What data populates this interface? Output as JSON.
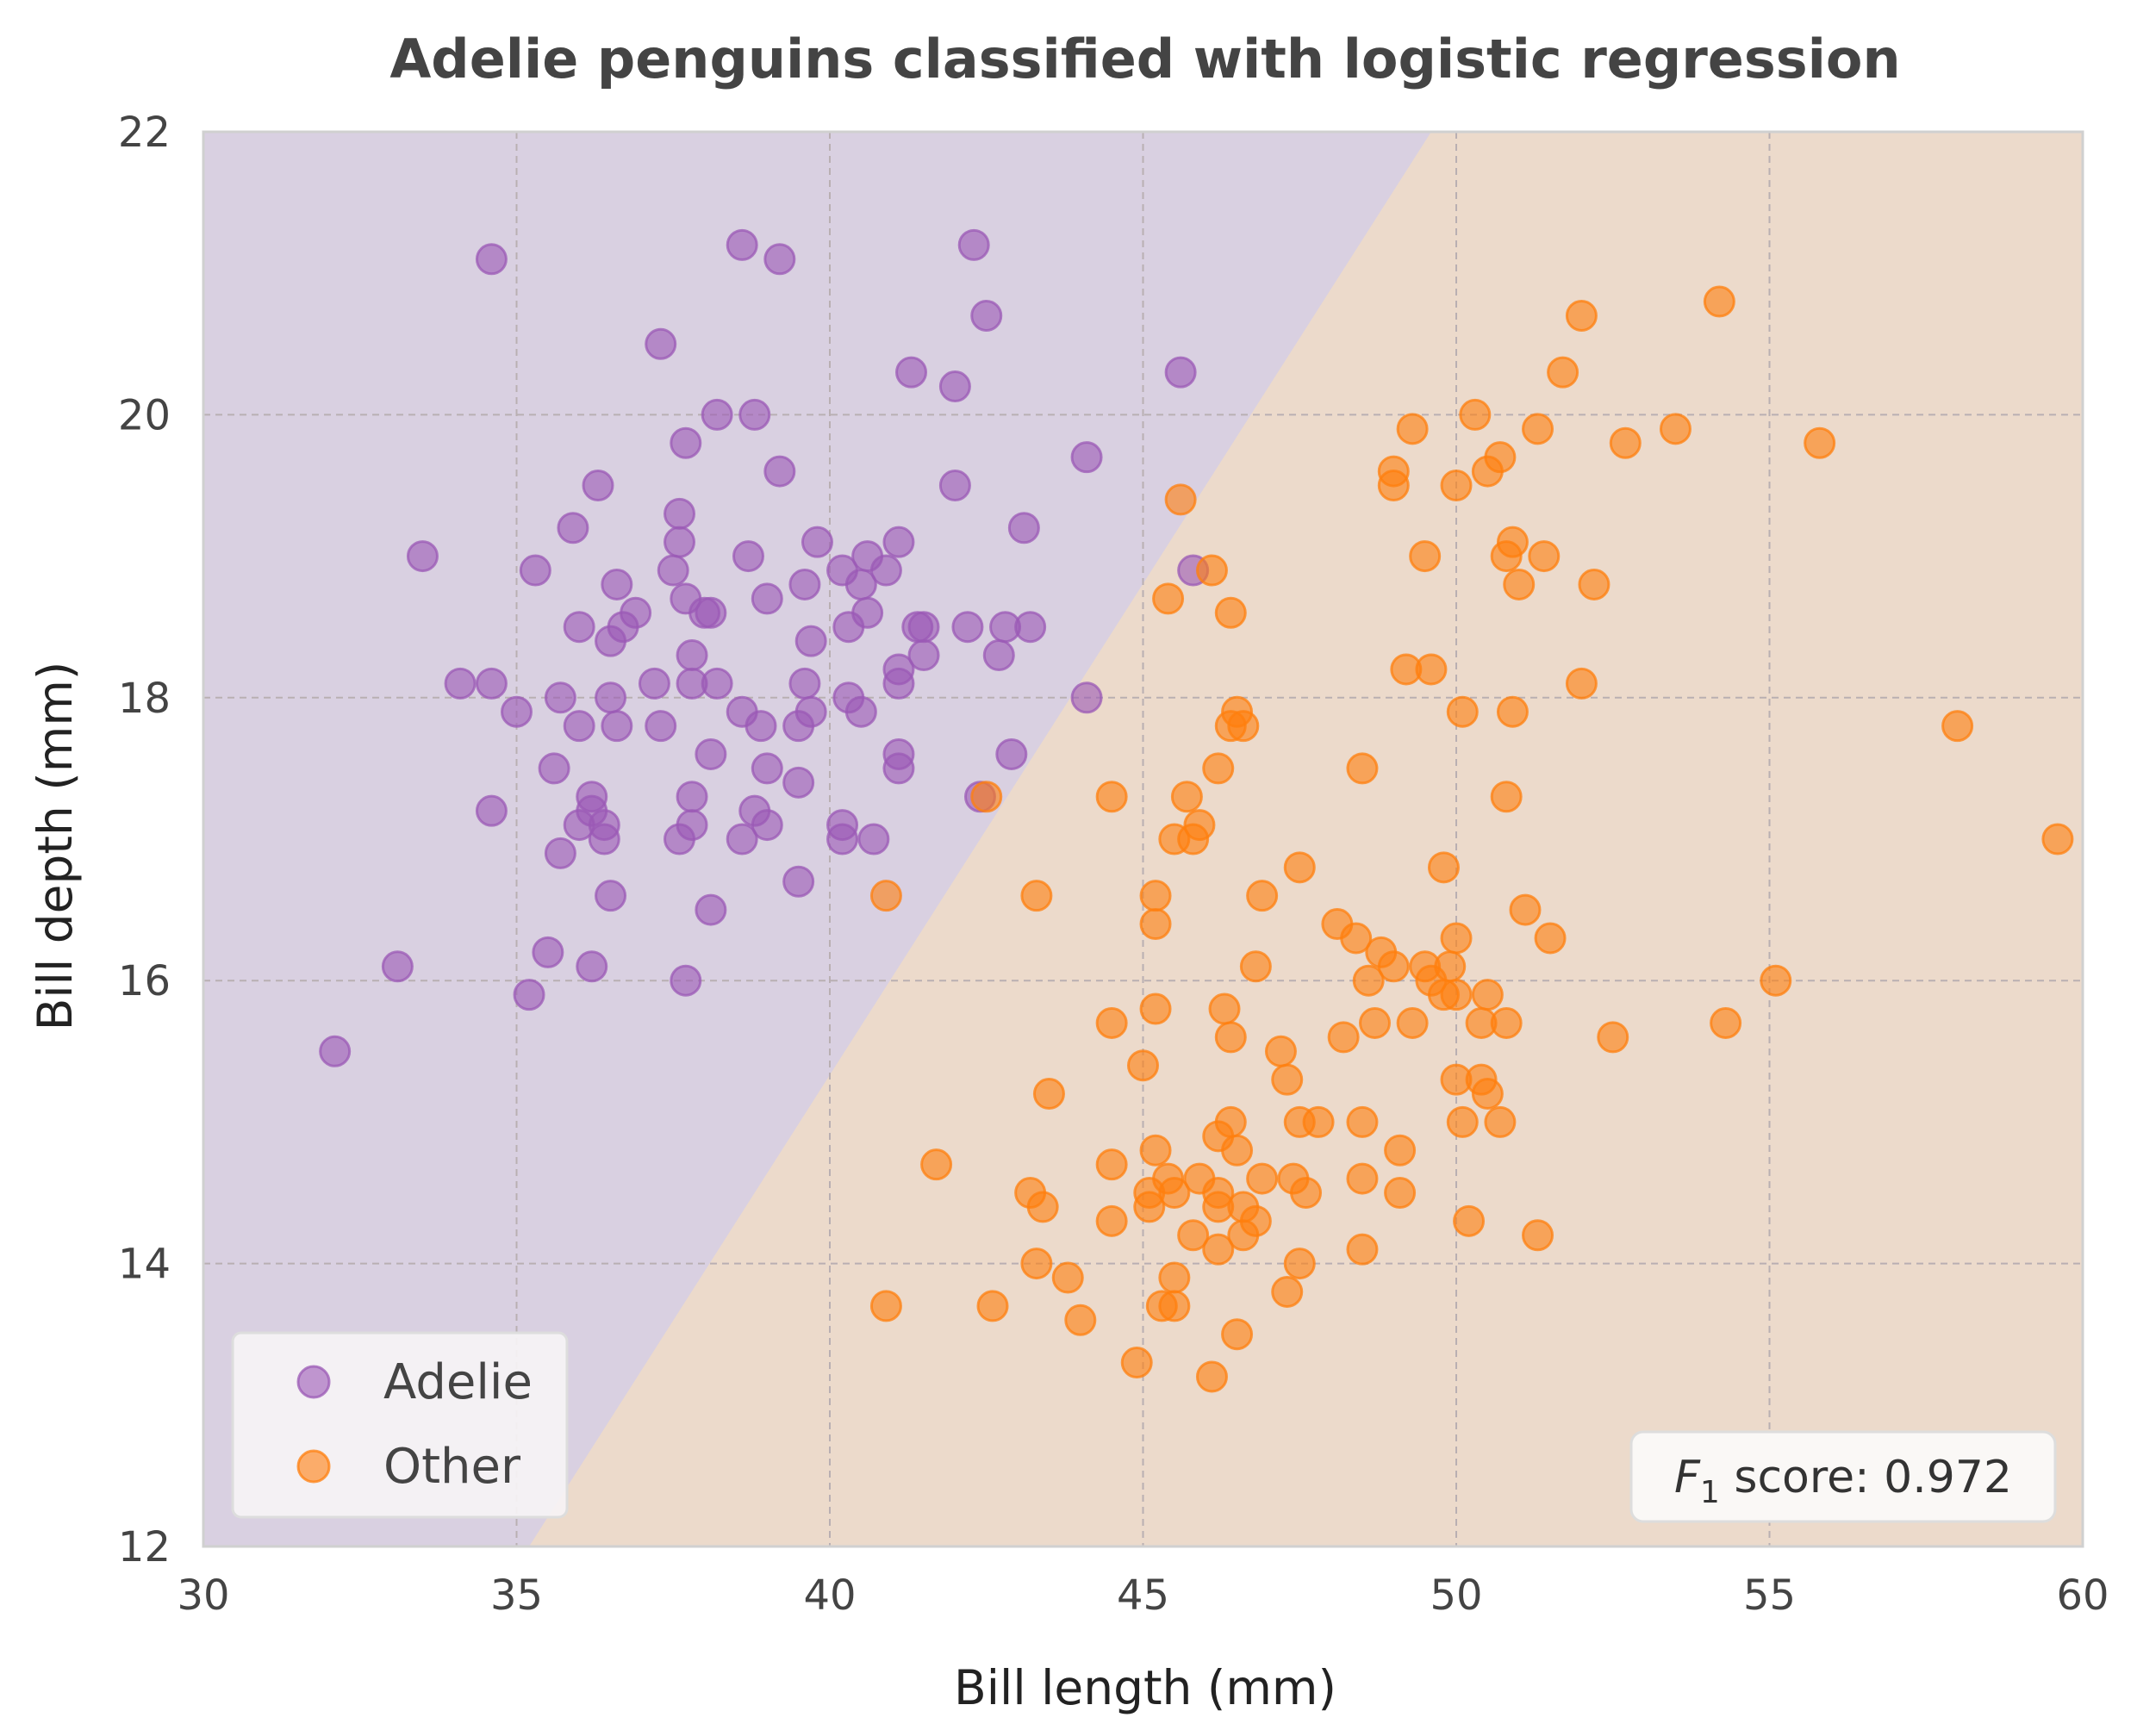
{
  "chart_data": {
    "type": "scatter",
    "title": "Adelie penguins classified with logistic regression",
    "xlabel": "Bill length (mm)",
    "ylabel": "Bill depth (mm)",
    "xlim": [
      30,
      60
    ],
    "ylim": [
      12,
      22
    ],
    "xticks": [
      "30",
      "35",
      "40",
      "45",
      "50",
      "55",
      "60"
    ],
    "yticks": [
      "12",
      "14",
      "16",
      "18",
      "20",
      "22"
    ],
    "grid": true,
    "legend_position": "bottom-left",
    "decision_boundary": {
      "points": [
        [
          35.2,
          12
        ],
        [
          49.6,
          22
        ]
      ],
      "adelie_region_color": "#d9d0e1",
      "other_region_color": "#ecdacb"
    },
    "annotation": {
      "prefix": "F",
      "subscript": "1",
      "suffix": " score: 0.972",
      "position": "bottom-right"
    },
    "series": [
      {
        "name": "Adelie",
        "color": "#9b59b6",
        "points": [
          [
            34.6,
            21.1
          ],
          [
            38.6,
            21.2
          ],
          [
            39.2,
            21.1
          ],
          [
            42.3,
            21.2
          ],
          [
            42.5,
            20.7
          ],
          [
            37.3,
            20.5
          ],
          [
            41.3,
            20.3
          ],
          [
            45.6,
            20.3
          ],
          [
            42.0,
            20.2
          ],
          [
            38.2,
            20.0
          ],
          [
            38.8,
            20.0
          ],
          [
            37.7,
            19.8
          ],
          [
            44.1,
            19.7
          ],
          [
            39.2,
            19.6
          ],
          [
            36.3,
            19.5
          ],
          [
            42.0,
            19.5
          ],
          [
            35.9,
            19.2
          ],
          [
            43.1,
            19.2
          ],
          [
            37.6,
            19.3
          ],
          [
            33.5,
            19.0
          ],
          [
            35.3,
            18.9
          ],
          [
            37.5,
            18.9
          ],
          [
            38.7,
            19.0
          ],
          [
            39.8,
            19.1
          ],
          [
            40.2,
            18.9
          ],
          [
            40.6,
            19.0
          ],
          [
            40.9,
            18.9
          ],
          [
            41.1,
            19.1
          ],
          [
            45.8,
            18.9
          ],
          [
            37.6,
            19.1
          ],
          [
            36.6,
            18.8
          ],
          [
            39.6,
            18.8
          ],
          [
            40.5,
            18.8
          ],
          [
            40.6,
            18.6
          ],
          [
            37.7,
            18.7
          ],
          [
            38.0,
            18.6
          ],
          [
            38.1,
            18.6
          ],
          [
            39.0,
            18.7
          ],
          [
            36.9,
            18.6
          ],
          [
            36.7,
            18.5
          ],
          [
            36.0,
            18.5
          ],
          [
            36.5,
            18.4
          ],
          [
            39.7,
            18.4
          ],
          [
            40.3,
            18.5
          ],
          [
            41.4,
            18.5
          ],
          [
            41.5,
            18.5
          ],
          [
            42.2,
            18.5
          ],
          [
            42.8,
            18.5
          ],
          [
            43.2,
            18.5
          ],
          [
            41.5,
            18.3
          ],
          [
            42.7,
            18.3
          ],
          [
            37.8,
            18.3
          ],
          [
            34.1,
            18.1
          ],
          [
            34.6,
            18.1
          ],
          [
            37.2,
            18.1
          ],
          [
            37.8,
            18.1
          ],
          [
            38.2,
            18.1
          ],
          [
            39.6,
            18.1
          ],
          [
            41.1,
            18.2
          ],
          [
            41.1,
            18.1
          ],
          [
            44.1,
            18.0
          ],
          [
            35.7,
            18.0
          ],
          [
            36.5,
            18.0
          ],
          [
            40.3,
            18.0
          ],
          [
            35.0,
            17.9
          ],
          [
            38.6,
            17.9
          ],
          [
            39.7,
            17.9
          ],
          [
            40.5,
            17.9
          ],
          [
            36.0,
            17.8
          ],
          [
            36.6,
            17.8
          ],
          [
            37.3,
            17.8
          ],
          [
            38.9,
            17.8
          ],
          [
            39.5,
            17.8
          ],
          [
            38.1,
            17.6
          ],
          [
            41.1,
            17.6
          ],
          [
            42.9,
            17.6
          ],
          [
            35.6,
            17.5
          ],
          [
            39.0,
            17.5
          ],
          [
            41.1,
            17.5
          ],
          [
            39.5,
            17.4
          ],
          [
            36.2,
            17.3
          ],
          [
            37.8,
            17.3
          ],
          [
            42.4,
            17.3
          ],
          [
            34.6,
            17.2
          ],
          [
            36.2,
            17.2
          ],
          [
            38.8,
            17.2
          ],
          [
            36.0,
            17.1
          ],
          [
            36.4,
            17.1
          ],
          [
            37.8,
            17.1
          ],
          [
            39.0,
            17.1
          ],
          [
            40.2,
            17.1
          ],
          [
            36.4,
            17.0
          ],
          [
            37.6,
            17.0
          ],
          [
            38.6,
            17.0
          ],
          [
            40.2,
            17.0
          ],
          [
            40.7,
            17.0
          ],
          [
            35.7,
            16.9
          ],
          [
            39.5,
            16.7
          ],
          [
            36.5,
            16.6
          ],
          [
            38.1,
            16.5
          ],
          [
            35.5,
            16.2
          ],
          [
            33.1,
            16.1
          ],
          [
            36.2,
            16.1
          ],
          [
            37.7,
            16.0
          ],
          [
            35.2,
            15.9
          ],
          [
            32.1,
            15.5
          ]
        ]
      },
      {
        "name": "Other",
        "color": "#ff7f0e",
        "points": [
          [
            54.2,
            20.8
          ],
          [
            52.0,
            20.7
          ],
          [
            51.7,
            20.3
          ],
          [
            50.3,
            20.0
          ],
          [
            49.3,
            19.9
          ],
          [
            51.3,
            19.9
          ],
          [
            53.5,
            19.9
          ],
          [
            52.7,
            19.8
          ],
          [
            55.8,
            19.8
          ],
          [
            50.7,
            19.7
          ],
          [
            49.0,
            19.6
          ],
          [
            50.5,
            19.6
          ],
          [
            49.0,
            19.5
          ],
          [
            50.0,
            19.5
          ],
          [
            45.6,
            19.4
          ],
          [
            50.9,
            19.1
          ],
          [
            49.5,
            19.0
          ],
          [
            50.8,
            19.0
          ],
          [
            51.4,
            19.0
          ],
          [
            46.1,
            18.9
          ],
          [
            51.0,
            18.8
          ],
          [
            52.2,
            18.8
          ],
          [
            45.4,
            18.7
          ],
          [
            46.4,
            18.6
          ],
          [
            49.2,
            18.2
          ],
          [
            49.6,
            18.2
          ],
          [
            52.0,
            18.1
          ],
          [
            50.1,
            17.9
          ],
          [
            50.9,
            17.9
          ],
          [
            46.5,
            17.9
          ],
          [
            46.4,
            17.8
          ],
          [
            46.6,
            17.8
          ],
          [
            58.0,
            17.8
          ],
          [
            46.2,
            17.5
          ],
          [
            48.5,
            17.5
          ],
          [
            44.5,
            17.3
          ],
          [
            45.7,
            17.3
          ],
          [
            50.8,
            17.3
          ],
          [
            42.5,
            17.3
          ],
          [
            45.9,
            17.1
          ],
          [
            45.5,
            17.0
          ],
          [
            45.8,
            17.0
          ],
          [
            59.6,
            17.0
          ],
          [
            47.5,
            16.8
          ],
          [
            49.8,
            16.8
          ],
          [
            40.9,
            16.6
          ],
          [
            43.3,
            16.6
          ],
          [
            45.2,
            16.6
          ],
          [
            46.9,
            16.6
          ],
          [
            51.1,
            16.5
          ],
          [
            45.2,
            16.4
          ],
          [
            48.1,
            16.4
          ],
          [
            48.4,
            16.3
          ],
          [
            50.0,
            16.3
          ],
          [
            51.5,
            16.3
          ],
          [
            48.8,
            16.2
          ],
          [
            46.8,
            16.1
          ],
          [
            49.0,
            16.1
          ],
          [
            49.9,
            16.1
          ],
          [
            49.5,
            16.1
          ],
          [
            49.6,
            16.0
          ],
          [
            48.6,
            16.0
          ],
          [
            55.1,
            16.0
          ],
          [
            49.8,
            15.9
          ],
          [
            50.0,
            15.9
          ],
          [
            50.5,
            15.9
          ],
          [
            45.2,
            15.8
          ],
          [
            46.3,
            15.8
          ],
          [
            44.5,
            15.7
          ],
          [
            48.7,
            15.7
          ],
          [
            49.3,
            15.7
          ],
          [
            50.4,
            15.7
          ],
          [
            50.8,
            15.7
          ],
          [
            54.3,
            15.7
          ],
          [
            46.4,
            15.6
          ],
          [
            48.2,
            15.6
          ],
          [
            52.5,
            15.6
          ],
          [
            47.2,
            15.5
          ],
          [
            45.0,
            15.4
          ],
          [
            47.3,
            15.3
          ],
          [
            50.4,
            15.3
          ],
          [
            50.0,
            15.3
          ],
          [
            43.5,
            15.2
          ],
          [
            50.5,
            15.2
          ],
          [
            46.4,
            15.0
          ],
          [
            47.5,
            15.0
          ],
          [
            47.8,
            15.0
          ],
          [
            48.5,
            15.0
          ],
          [
            50.1,
            15.0
          ],
          [
            50.7,
            15.0
          ],
          [
            46.2,
            14.9
          ],
          [
            45.2,
            14.8
          ],
          [
            46.5,
            14.8
          ],
          [
            49.1,
            14.8
          ],
          [
            41.7,
            14.7
          ],
          [
            44.5,
            14.7
          ],
          [
            45.4,
            14.6
          ],
          [
            45.9,
            14.6
          ],
          [
            46.9,
            14.6
          ],
          [
            47.4,
            14.6
          ],
          [
            48.5,
            14.6
          ],
          [
            43.2,
            14.5
          ],
          [
            45.5,
            14.5
          ],
          [
            45.1,
            14.5
          ],
          [
            46.2,
            14.5
          ],
          [
            47.6,
            14.5
          ],
          [
            49.1,
            14.5
          ],
          [
            43.4,
            14.4
          ],
          [
            45.1,
            14.4
          ],
          [
            46.2,
            14.4
          ],
          [
            46.6,
            14.4
          ],
          [
            44.5,
            14.3
          ],
          [
            46.8,
            14.3
          ],
          [
            50.2,
            14.3
          ],
          [
            45.8,
            14.2
          ],
          [
            46.6,
            14.2
          ],
          [
            51.3,
            14.2
          ],
          [
            46.2,
            14.1
          ],
          [
            48.5,
            14.1
          ],
          [
            43.3,
            14.0
          ],
          [
            47.5,
            14.0
          ],
          [
            43.8,
            13.9
          ],
          [
            45.5,
            13.9
          ],
          [
            47.3,
            13.8
          ],
          [
            40.9,
            13.7
          ],
          [
            42.6,
            13.7
          ],
          [
            45.3,
            13.7
          ],
          [
            45.5,
            13.7
          ],
          [
            44.0,
            13.6
          ],
          [
            46.5,
            13.5
          ],
          [
            44.9,
            13.3
          ],
          [
            46.1,
            13.2
          ]
        ]
      }
    ]
  }
}
